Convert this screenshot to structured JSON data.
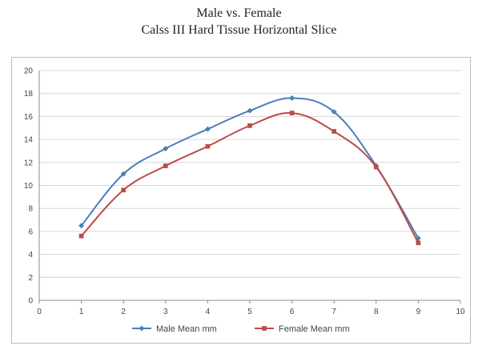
{
  "chart_data": {
    "type": "scatter",
    "title": "Male vs. Female",
    "subtitle": "Calss III Hard Tissue Horizontal Slice",
    "xlabel": "",
    "ylabel": "",
    "xlim": [
      0,
      10
    ],
    "ylim": [
      0,
      20
    ],
    "x_ticks": [
      0,
      1,
      2,
      3,
      4,
      5,
      6,
      7,
      8,
      9,
      10
    ],
    "y_ticks": [
      0,
      2,
      4,
      6,
      8,
      10,
      12,
      14,
      16,
      18,
      20
    ],
    "grid": "horizontal",
    "legend_position": "bottom",
    "line_style": "smoothed",
    "series": [
      {
        "name": "Male Mean mm",
        "color": "#4a7ebb",
        "marker": "diamond",
        "x": [
          1,
          2,
          3,
          4,
          5,
          6,
          7,
          8,
          9
        ],
        "y": [
          6.5,
          11.0,
          13.2,
          14.9,
          16.5,
          17.6,
          16.4,
          11.7,
          5.4
        ]
      },
      {
        "name": "Female Mean mm",
        "color": "#be4b48",
        "marker": "square",
        "x": [
          1,
          2,
          3,
          4,
          5,
          6,
          7,
          8,
          9
        ],
        "y": [
          5.6,
          9.6,
          11.7,
          13.4,
          15.2,
          16.3,
          14.7,
          11.6,
          5.0
        ]
      }
    ]
  }
}
